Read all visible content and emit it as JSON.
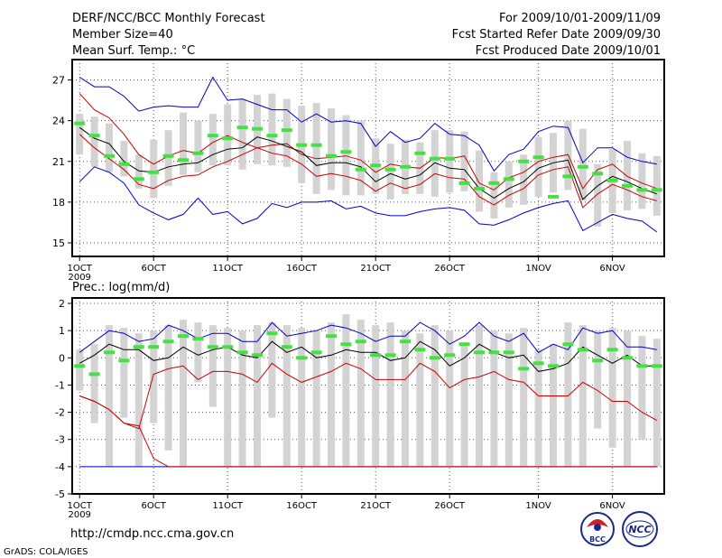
{
  "header": {
    "title": "DERF/NCC/BCC Monthly Forecast",
    "member_size": "Member Size=40",
    "variable": "Mean Surf. Temp.: °C",
    "period": "For 2009/10/01-2009/11/09",
    "refer_date": "Fcst Started Refer Date 2009/09/30",
    "produced_date": "Fcst Produced Date 2009/10/01"
  },
  "footer": {
    "url": "http://cmdp.ncc.cma.gov.cn",
    "credit": "GrADS: COLA/IGES",
    "logo_left": "BCC",
    "logo_right": "NCC"
  },
  "colors": {
    "box": "#d3d3d3",
    "mean": "#000000",
    "bound_outer": "#0000cc",
    "bound_inner": "#cc0000",
    "obs": "#44e044",
    "grid": "#555555"
  },
  "chart_data": [
    {
      "type": "box-line",
      "name": "temperature",
      "title": "Mean Surf. Temp.: °C",
      "xlabel": "",
      "ylabel": "°C",
      "x": [
        1,
        2,
        3,
        4,
        5,
        6,
        7,
        8,
        9,
        10,
        11,
        12,
        13,
        14,
        15,
        16,
        17,
        18,
        19,
        20,
        21,
        22,
        23,
        24,
        25,
        26,
        27,
        28,
        29,
        30,
        31,
        32,
        33,
        34,
        35,
        36,
        37,
        38,
        39,
        40
      ],
      "xticks": [
        1,
        6,
        11,
        16,
        21,
        26,
        32,
        37
      ],
      "xtick_labels": [
        "1OCT",
        "6OCT",
        "11OCT",
        "16OCT",
        "21OCT",
        "26OCT",
        "1NOV",
        "6NOV"
      ],
      "year_label": "2009",
      "yticks": [
        15,
        18,
        21,
        24,
        27
      ],
      "ylim": [
        14,
        28.5
      ],
      "xlim": [
        0.5,
        40.5
      ],
      "series": [
        {
          "name": "box_high",
          "values": [
            24.5,
            24.3,
            23.8,
            22.5,
            21.5,
            22.6,
            23.3,
            24.6,
            24.0,
            24.5,
            25.2,
            25.6,
            25.9,
            26.0,
            25.6,
            25.1,
            25.3,
            24.9,
            24.4,
            24.0,
            22.7,
            22.3,
            22.6,
            22.4,
            23.3,
            23.3,
            23.2,
            21.8,
            20.2,
            21.0,
            21.5,
            22.8,
            23.1,
            24.0,
            23.4,
            20.8,
            21.9,
            22.5,
            21.6,
            21.4
          ]
        },
        {
          "name": "box_low",
          "values": [
            21.5,
            20.6,
            20.2,
            19.9,
            19.0,
            18.3,
            19.2,
            20.0,
            20.2,
            20.7,
            20.7,
            20.4,
            20.8,
            20.7,
            20.6,
            19.4,
            18.6,
            18.9,
            18.5,
            18.5,
            18.6,
            18.2,
            18.6,
            18.6,
            18.4,
            18.7,
            18.8,
            17.3,
            16.8,
            17.6,
            17.8,
            18.4,
            18.7,
            18.9,
            18.1,
            16.2,
            17.2,
            17.4,
            17.5,
            17.0
          ]
        },
        {
          "name": "upper_bound",
          "values": [
            27.2,
            26.5,
            26.5,
            25.8,
            24.7,
            25.0,
            25.1,
            25.0,
            25.0,
            27.2,
            25.5,
            25.6,
            25.2,
            24.8,
            24.8,
            23.9,
            24.5,
            23.9,
            24.0,
            23.8,
            22.1,
            23.2,
            22.4,
            22.7,
            23.8,
            23.0,
            22.9,
            22.2,
            20.3,
            21.5,
            21.9,
            23.2,
            23.6,
            23.5,
            20.9,
            22.0,
            22.0,
            21.3,
            21.0,
            20.8
          ]
        },
        {
          "name": "inner_high",
          "values": [
            26.0,
            24.8,
            24.2,
            23.0,
            21.5,
            20.8,
            21.4,
            21.8,
            21.6,
            22.4,
            22.9,
            22.4,
            22.0,
            22.2,
            22.3,
            21.5,
            21.2,
            21.3,
            21.4,
            21.1,
            20.2,
            20.8,
            20.6,
            20.5,
            21.3,
            21.2,
            21.4,
            19.4,
            18.9,
            19.8,
            20.2,
            21.0,
            21.3,
            21.5,
            19.0,
            20.4,
            20.8,
            19.9,
            19.4,
            19.0
          ]
        },
        {
          "name": "mean",
          "values": [
            23.5,
            22.7,
            22.3,
            21.0,
            20.3,
            20.2,
            20.6,
            20.8,
            20.9,
            21.5,
            21.9,
            22.0,
            22.8,
            22.5,
            22.1,
            21.7,
            20.7,
            20.9,
            20.9,
            20.6,
            19.5,
            20.1,
            19.7,
            20.0,
            20.9,
            20.5,
            20.4,
            19.0,
            18.3,
            19.0,
            19.5,
            20.5,
            20.9,
            21.1,
            18.2,
            19.2,
            19.9,
            19.5,
            19.0,
            18.6
          ]
        },
        {
          "name": "inner_low",
          "values": [
            23.0,
            22.0,
            21.2,
            20.4,
            19.3,
            19.0,
            19.6,
            19.9,
            20.0,
            20.6,
            21.0,
            21.5,
            22.0,
            21.6,
            21.4,
            20.8,
            19.9,
            20.1,
            19.9,
            19.6,
            18.8,
            19.4,
            19.0,
            19.3,
            20.1,
            19.8,
            19.7,
            18.4,
            17.8,
            18.5,
            19.0,
            20.0,
            20.4,
            20.6,
            17.6,
            18.6,
            19.3,
            18.9,
            18.4,
            18.1
          ]
        },
        {
          "name": "lower_bound",
          "values": [
            19.5,
            20.6,
            20.2,
            19.4,
            17.8,
            17.2,
            16.7,
            17.1,
            18.3,
            17.1,
            17.3,
            16.4,
            16.8,
            17.9,
            17.6,
            18.0,
            18.0,
            18.1,
            17.5,
            17.7,
            17.2,
            17.0,
            17.0,
            17.3,
            17.5,
            17.6,
            17.4,
            16.4,
            16.3,
            16.7,
            17.2,
            17.6,
            17.9,
            18.1,
            15.9,
            16.5,
            17.1,
            16.8,
            16.6,
            15.8
          ]
        },
        {
          "name": "observed",
          "values": [
            23.8,
            22.9,
            21.4,
            20.8,
            19.7,
            20.2,
            21.4,
            21.1,
            21.6,
            22.9,
            22.7,
            23.5,
            23.4,
            22.9,
            23.3,
            22.2,
            22.2,
            21.4,
            21.7,
            20.4,
            20.7,
            20.4,
            20.6,
            21.6,
            21.2,
            21.2,
            19.4,
            19.0,
            19.4,
            19.7,
            21.0,
            21.3,
            18.4,
            19.9,
            20.6,
            20.1,
            19.6,
            19.2,
            18.9,
            18.9
          ]
        }
      ]
    },
    {
      "type": "box-line",
      "name": "precipitation",
      "title": "Prec.: log(mm/d)",
      "xlabel": "",
      "ylabel": "log(mm/d)",
      "x": [
        1,
        2,
        3,
        4,
        5,
        6,
        7,
        8,
        9,
        10,
        11,
        12,
        13,
        14,
        15,
        16,
        17,
        18,
        19,
        20,
        21,
        22,
        23,
        24,
        25,
        26,
        27,
        28,
        29,
        30,
        31,
        32,
        33,
        34,
        35,
        36,
        37,
        38,
        39,
        40
      ],
      "xticks": [
        1,
        6,
        11,
        16,
        21,
        26,
        32,
        37
      ],
      "xtick_labels": [
        "1OCT",
        "6OCT",
        "11OCT",
        "16OCT",
        "21OCT",
        "26OCT",
        "1NOV",
        "6NOV"
      ],
      "year_label": "2009",
      "yticks": [
        -5,
        -4,
        -3,
        -2,
        -1,
        0,
        1,
        2
      ],
      "ylim": [
        -5,
        2.2
      ],
      "xlim": [
        0.5,
        40.5
      ],
      "series": [
        {
          "name": "box_high",
          "values": [
            0.3,
            0.5,
            1.2,
            1.1,
            0.9,
            1.0,
            1.2,
            1.4,
            1.3,
            1.2,
            1.1,
            1.0,
            1.2,
            1.3,
            1.2,
            1.1,
            1.0,
            1.3,
            1.6,
            1.4,
            1.2,
            1.3,
            1.0,
            0.9,
            1.2,
            1.0,
            0.5,
            1.2,
            1.0,
            0.9,
            1.1,
            0.3,
            0.5,
            1.3,
            1.2,
            1.0,
            1.1,
            1.0,
            0.8,
            0.7
          ]
        },
        {
          "name": "box_low",
          "values": [
            -1.2,
            -2.4,
            -4.0,
            -2.2,
            -4.0,
            -2.4,
            -3.4,
            -4.0,
            -0.9,
            -1.8,
            -4.0,
            -4.0,
            -4.0,
            -2.2,
            -4.0,
            -4.0,
            -4.0,
            -4.0,
            -4.0,
            -4.0,
            -4.0,
            -4.0,
            -4.0,
            -4.0,
            -4.0,
            -4.0,
            -4.0,
            -4.0,
            -4.0,
            -4.0,
            -4.0,
            -4.0,
            -4.0,
            -4.0,
            -4.0,
            -2.6,
            -3.3,
            -4.0,
            -3.0,
            -4.0
          ]
        },
        {
          "name": "upper_bound",
          "values": [
            0.2,
            0.6,
            1.0,
            0.9,
            0.6,
            0.7,
            1.2,
            1.0,
            0.7,
            0.9,
            0.9,
            0.6,
            0.6,
            1.3,
            0.8,
            0.9,
            1.0,
            1.2,
            1.1,
            0.9,
            0.6,
            0.8,
            0.8,
            1.3,
            1.0,
            0.5,
            0.8,
            1.3,
            0.8,
            0.6,
            0.9,
            0.2,
            0.5,
            0.3,
            1.1,
            0.9,
            1.0,
            0.4,
            0.4,
            0.3
          ]
        },
        {
          "name": "mean",
          "values": [
            -0.2,
            0.1,
            0.5,
            0.3,
            0.3,
            -0.1,
            0.0,
            0.4,
            0.1,
            0.3,
            0.4,
            0.1,
            0.0,
            0.6,
            0.2,
            0.4,
            0.0,
            0.1,
            0.3,
            0.2,
            0.2,
            -0.1,
            0.0,
            0.6,
            0.3,
            -0.3,
            0.0,
            0.5,
            0.2,
            0.0,
            0.1,
            -0.5,
            -0.4,
            -0.2,
            0.4,
            0.1,
            -0.2,
            0.1,
            -0.3,
            -0.3
          ]
        },
        {
          "name": "inner_low",
          "values": [
            -1.4,
            -1.6,
            -1.9,
            -2.4,
            -2.5,
            -3.7,
            -4.0,
            -4.0,
            -4.0,
            -4.0,
            -4.0,
            -4.0,
            -4.0,
            -4.0,
            -4.0,
            -4.0,
            -4.0,
            -4.0,
            -4.0,
            -4.0,
            -4.0,
            -4.0,
            -4.0,
            -4.0,
            -4.0,
            -4.0,
            -4.0,
            -4.0,
            -4.0,
            -4.0,
            -4.0,
            -4.0,
            -4.0,
            -4.0,
            -4.0,
            -4.0,
            -4.0,
            -4.0,
            -4.0,
            -4.0
          ]
        },
        {
          "name": "red_line",
          "values": [
            -1.4,
            -1.6,
            -1.9,
            -2.4,
            -2.6,
            -0.6,
            -0.4,
            -0.3,
            -0.8,
            -0.5,
            -0.5,
            -0.6,
            -0.9,
            -0.2,
            -0.6,
            -0.9,
            -0.7,
            -0.5,
            -0.2,
            -0.4,
            -0.8,
            -0.8,
            -0.8,
            -0.2,
            -0.5,
            -1.1,
            -0.8,
            -0.7,
            -0.5,
            -0.8,
            -0.9,
            -1.4,
            -1.4,
            -1.4,
            -0.9,
            -1.2,
            -1.6,
            -1.6,
            -2.0,
            -2.3
          ]
        },
        {
          "name": "lower_bound",
          "values": [
            -4.0,
            -4.0,
            -4.0,
            -4.0,
            -4.0,
            -4.0,
            -4.0,
            -4.0,
            -4.0,
            -4.0,
            -4.0,
            -4.0,
            -4.0,
            -4.0,
            -4.0,
            -4.0,
            -4.0,
            -4.0,
            -4.0,
            -4.0,
            -4.0,
            -4.0,
            -4.0,
            -4.0,
            -4.0,
            -4.0,
            -4.0,
            -4.0,
            -4.0,
            -4.0,
            -4.0,
            -4.0,
            -4.0,
            -4.0,
            -4.0,
            -4.0,
            -4.0,
            -4.0,
            -4.0,
            -4.0
          ]
        },
        {
          "name": "observed",
          "values": [
            -0.3,
            -0.6,
            0.2,
            -0.1,
            0.4,
            0.4,
            0.6,
            0.8,
            0.7,
            0.4,
            0.4,
            0.2,
            0.1,
            0.9,
            0.4,
            0.0,
            0.2,
            0.8,
            0.5,
            0.6,
            0.1,
            0.1,
            0.6,
            0.3,
            0.0,
            0.1,
            0.5,
            0.2,
            0.2,
            0.2,
            -0.4,
            -0.2,
            -0.3,
            0.5,
            0.3,
            -0.1,
            0.3,
            0.0,
            -0.3,
            -0.3
          ]
        }
      ]
    }
  ]
}
